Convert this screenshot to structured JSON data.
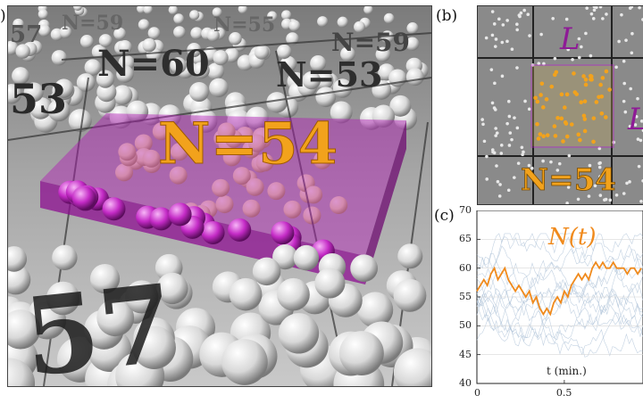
{
  "panel_a": {
    "label": ")",
    "main_label": "N=54",
    "bg_labels": [
      "53",
      "N=60",
      "N=53",
      "N=59",
      "57",
      "N=59",
      "N=55",
      "57"
    ],
    "main_color": "#f2a21c",
    "box_color": "#b21bb5"
  },
  "panel_b": {
    "label": "(b)",
    "l_top": "L",
    "l_right": "L",
    "count_label": "N=54",
    "box_color": "#c026c8",
    "particle_color": "#f2a21c"
  },
  "panel_c": {
    "label": "(c)",
    "series_label": "N(t)",
    "main_color": "#f08a1c",
    "bg_color": "#a9bfd6",
    "chart_data": {
      "type": "line",
      "xlabel": "t (min.)",
      "ylabel": "",
      "xlim": [
        0,
        0.95
      ],
      "ylim": [
        40,
        70
      ],
      "x_ticks": [
        "0",
        "0.5"
      ],
      "y_ticks": [
        "70",
        "65",
        "60",
        "55",
        "50",
        "45",
        "40"
      ],
      "series": [
        {
          "name": "N(t)",
          "x": [
            0,
            0.02,
            0.04,
            0.06,
            0.08,
            0.1,
            0.12,
            0.14,
            0.16,
            0.18,
            0.2,
            0.22,
            0.24,
            0.26,
            0.28,
            0.3,
            0.32,
            0.34,
            0.36,
            0.38,
            0.4,
            0.42,
            0.44,
            0.46,
            0.48,
            0.5,
            0.52,
            0.54,
            0.56,
            0.58,
            0.6,
            0.62,
            0.64,
            0.66,
            0.68,
            0.7,
            0.72,
            0.74,
            0.76,
            0.78,
            0.8,
            0.82,
            0.84,
            0.86,
            0.88,
            0.9,
            0.92,
            0.94
          ],
          "values": [
            56,
            57,
            58,
            57,
            59,
            60,
            58,
            59,
            60,
            58,
            57,
            56,
            57,
            56,
            55,
            56,
            54,
            55,
            53,
            52,
            53,
            52,
            54,
            55,
            54,
            56,
            55,
            57,
            58,
            59,
            58,
            59,
            58,
            60,
            61,
            60,
            61,
            60,
            60,
            61,
            60,
            60,
            60,
            59,
            60,
            60,
            59,
            60
          ]
        }
      ]
    }
  }
}
